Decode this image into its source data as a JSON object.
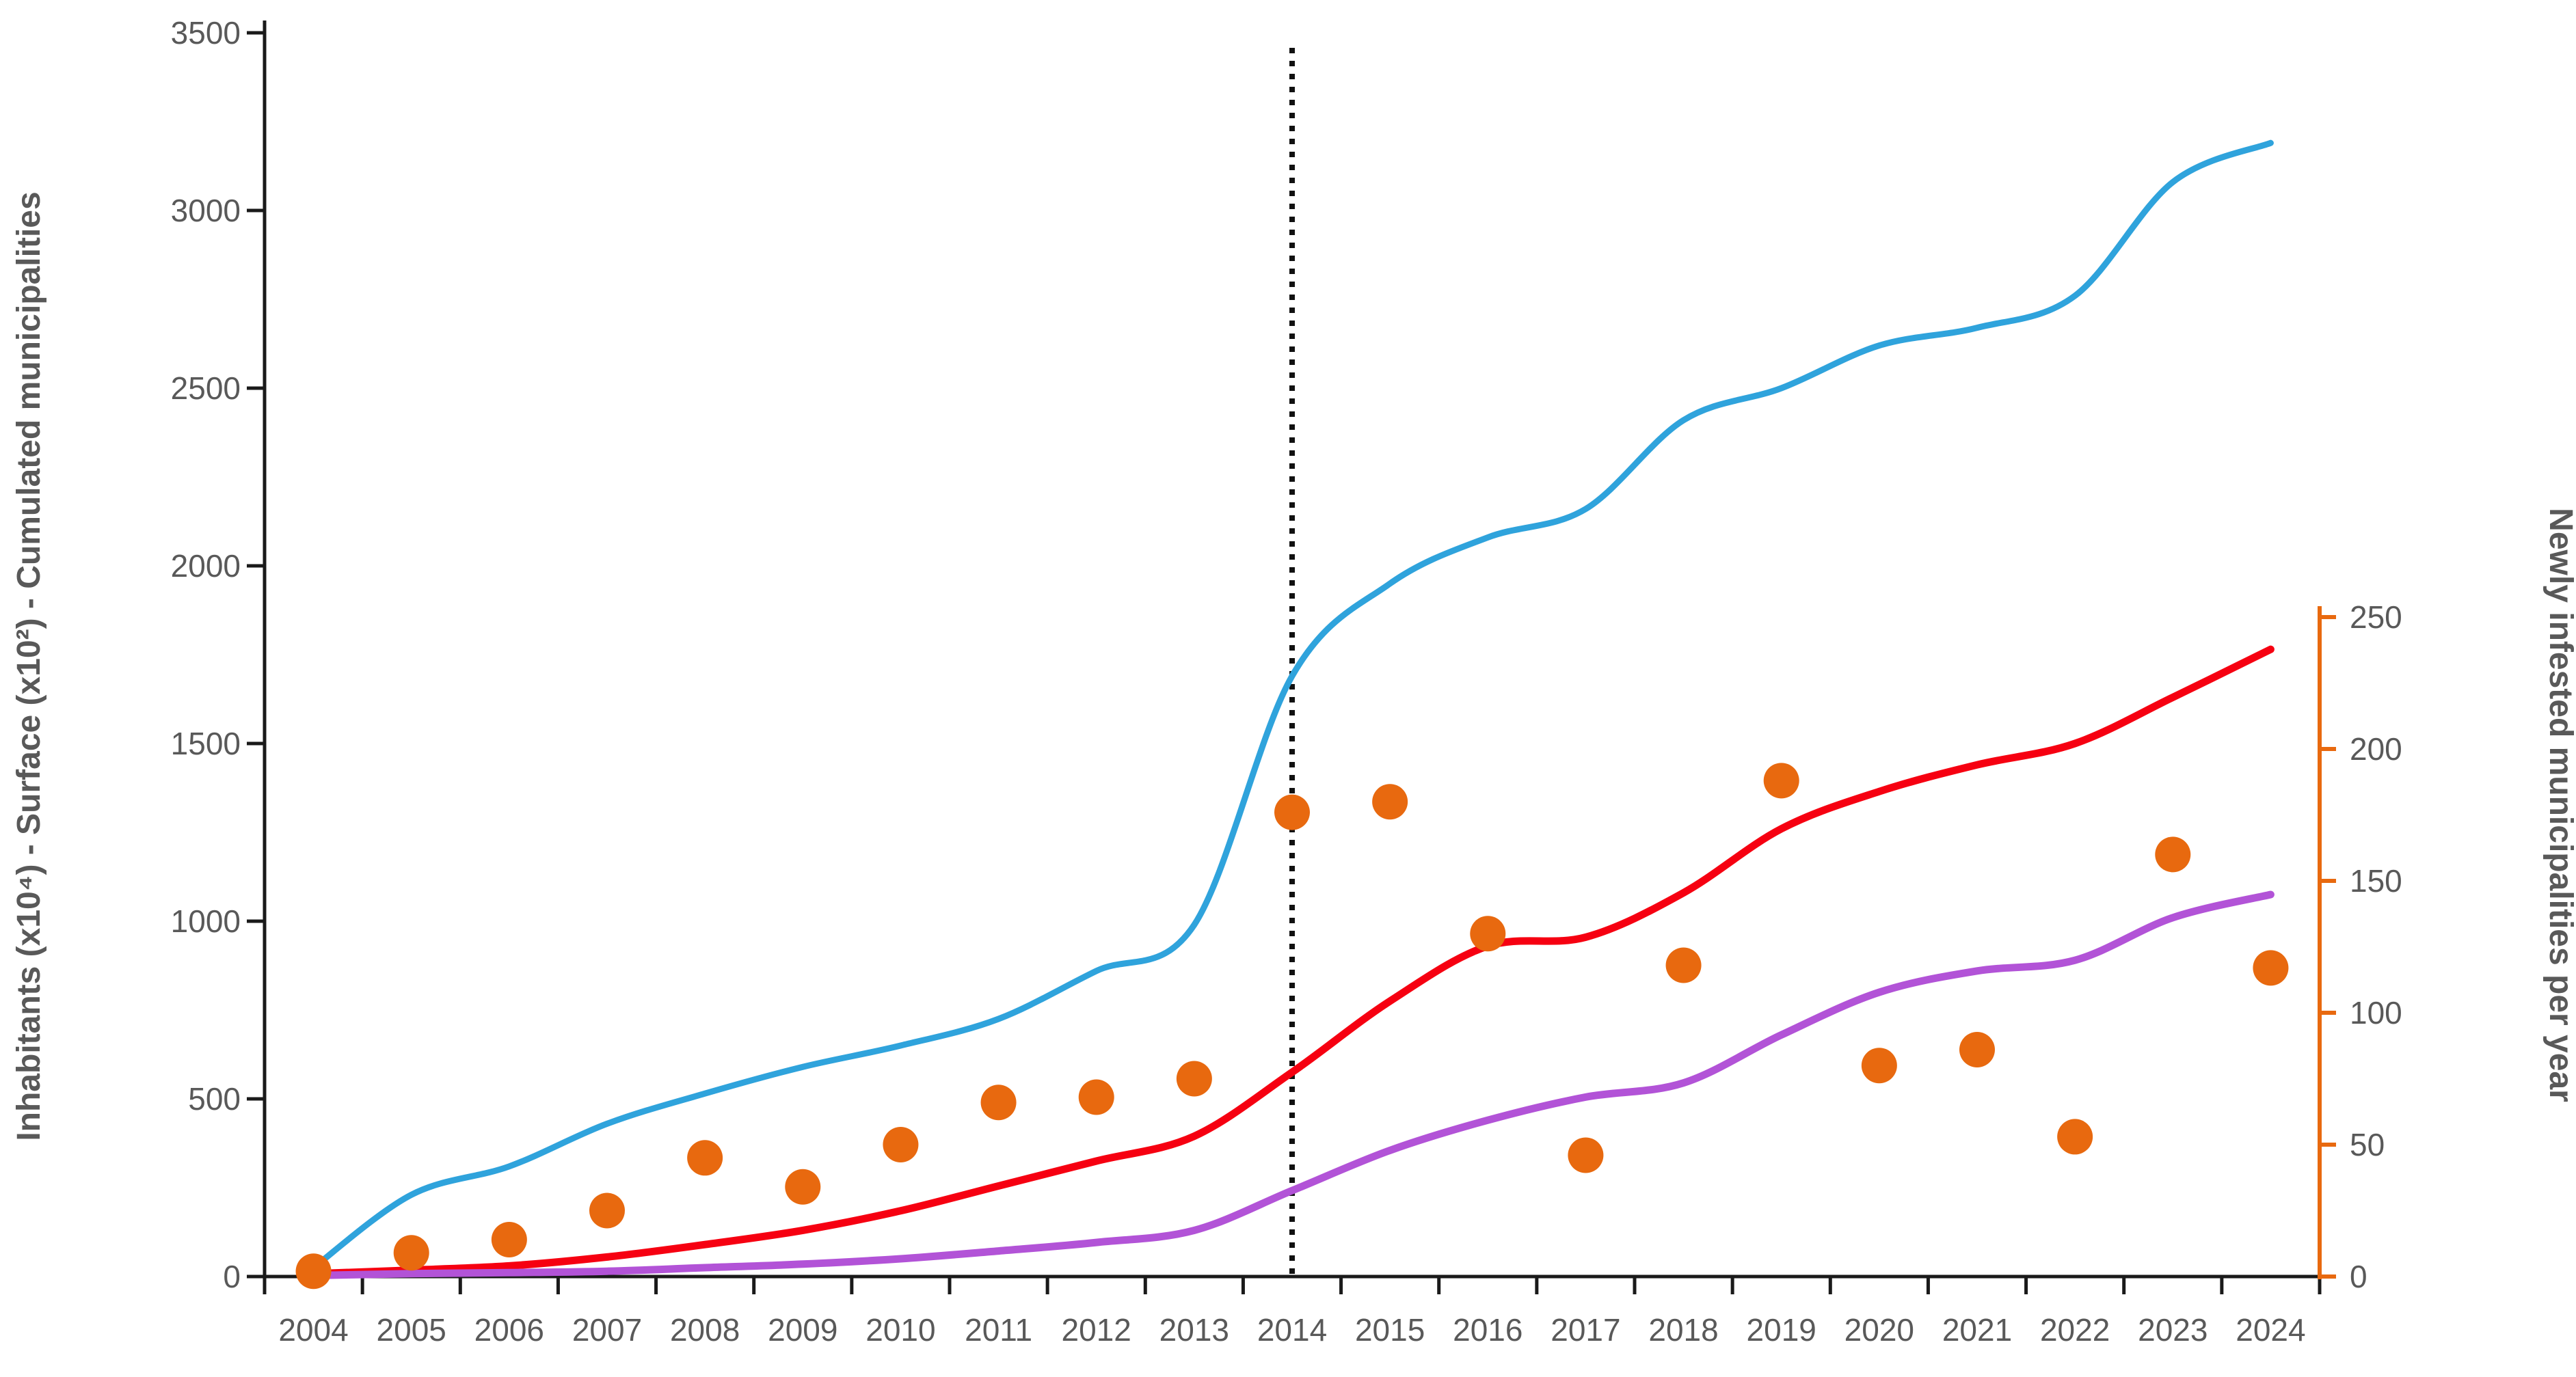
{
  "chart_data": {
    "type": "line",
    "subtype": "combo-line-scatter",
    "title": "",
    "categories": [
      2004,
      2005,
      2006,
      2007,
      2008,
      2009,
      2010,
      2011,
      2012,
      2013,
      2014,
      2015,
      2016,
      2017,
      2018,
      2019,
      2020,
      2021,
      2022,
      2023,
      2024
    ],
    "left_axis": {
      "label": "Inhabitants  (x10⁴) -  Surface (x10²)  -  Cumulated municipalities",
      "ticks": [
        0,
        500,
        1000,
        1500,
        2000,
        2500,
        3000,
        3500
      ],
      "range": [
        0,
        3500
      ],
      "tick_color": "#595959",
      "axis_color": "#1a1a1a"
    },
    "right_axis": {
      "label": "Newly infested municipalities per year",
      "ticks": [
        0,
        50,
        100,
        150,
        200,
        250
      ],
      "range": [
        0,
        250
      ],
      "tick_color": "#595959",
      "axis_color": "#e8690f"
    },
    "series": [
      {
        "name": "Cumulated municipalities",
        "type": "line",
        "axis": "left",
        "color": "#2fa3dc",
        "width": 9,
        "values": [
          25,
          230,
          310,
          430,
          515,
          590,
          650,
          725,
          860,
          990,
          1690,
          1950,
          2080,
          2160,
          2410,
          2500,
          2620,
          2670,
          2760,
          3080,
          3190
        ]
      },
      {
        "name": "Surface (x10²)",
        "type": "line",
        "axis": "left",
        "color": "#f60011",
        "width": 11,
        "values": [
          8,
          18,
          30,
          55,
          90,
          130,
          185,
          255,
          325,
          395,
          575,
          775,
          930,
          955,
          1080,
          1260,
          1365,
          1440,
          1500,
          1630,
          1765
        ]
      },
      {
        "name": "Inhabitants (x10⁴)",
        "type": "line",
        "axis": "left",
        "color": "#b253d7",
        "width": 11,
        "values": [
          3,
          8,
          11,
          15,
          25,
          35,
          50,
          72,
          96,
          130,
          242,
          355,
          440,
          505,
          545,
          680,
          800,
          860,
          890,
          1010,
          1075
        ]
      },
      {
        "name": "Newly infested municipalities per year",
        "type": "scatter",
        "axis": "right",
        "color": "#e8690f",
        "marker_radius": 26,
        "values": [
          2,
          9,
          14,
          25,
          45,
          34,
          50,
          66,
          68,
          75,
          176,
          180,
          130,
          46,
          118,
          188,
          80,
          86,
          53,
          160,
          117
        ]
      }
    ],
    "annotations": {
      "vline": {
        "year": 2014,
        "style": "dotted",
        "color": "#111111"
      }
    },
    "legend": "none",
    "grid": false
  }
}
